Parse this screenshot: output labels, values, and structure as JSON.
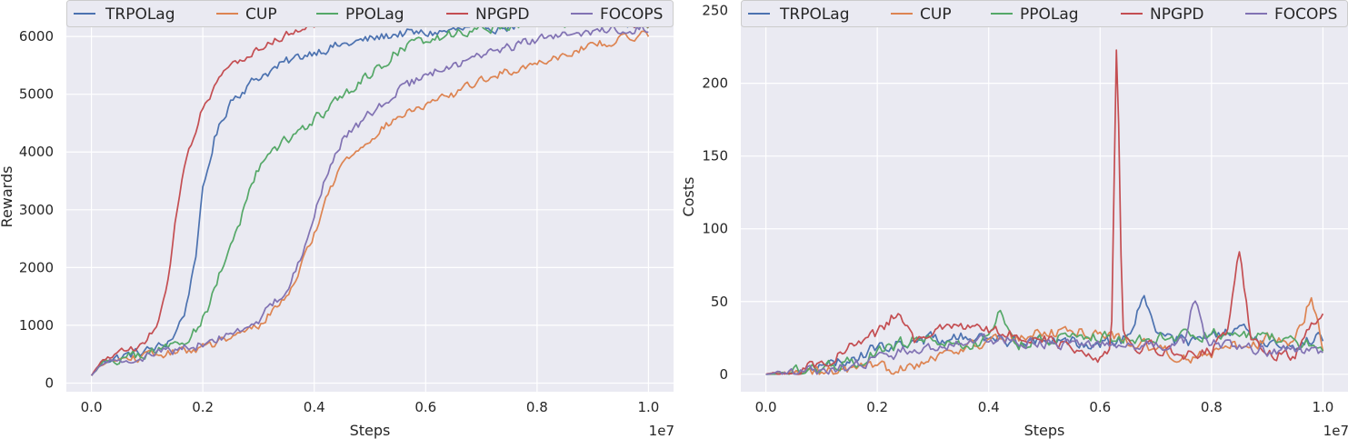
{
  "colors": {
    "TRPOLag": "#4C72B0",
    "CUP": "#DD8452",
    "PPOLag": "#55A868",
    "NPGPD": "#C44E52",
    "FOCOPS": "#8172B3",
    "panel_bg": "#EAEAF2",
    "grid": "#FFFFFF"
  },
  "chart_data": [
    {
      "type": "line",
      "title": "",
      "xlabel": "Steps",
      "ylabel": "Rewards",
      "x_exponent_label": "1e7",
      "xlim": [
        -0.045,
        1.045
      ],
      "ylim": [
        -150,
        6600
      ],
      "x_ticks": [
        0.0,
        0.2,
        0.4,
        0.6,
        0.8,
        1.0
      ],
      "x_tick_labels": [
        "0.0",
        "0.2",
        "0.4",
        "0.6",
        "0.8",
        "1.0"
      ],
      "y_ticks": [
        0,
        1000,
        2000,
        3000,
        4000,
        5000,
        6000
      ],
      "y_tick_labels": [
        "0",
        "1000",
        "2000",
        "3000",
        "4000",
        "5000",
        "6000"
      ],
      "grid": true,
      "legend_position": "top",
      "noise": {
        "TRPOLag": 140,
        "CUP": 120,
        "PPOLag": 150,
        "NPGPD": 110,
        "FOCOPS": 130
      },
      "series": [
        {
          "name": "TRPOLag",
          "x": [
            0,
            0.02,
            0.05,
            0.1,
            0.13,
            0.15,
            0.17,
            0.19,
            0.2,
            0.22,
            0.25,
            0.3,
            0.35,
            0.4,
            0.45,
            0.5,
            0.55,
            0.6,
            0.7,
            0.8,
            0.9,
            1.0
          ],
          "y": [
            130,
            380,
            450,
            560,
            650,
            850,
            1300,
            2400,
            3300,
            4200,
            4900,
            5300,
            5550,
            5750,
            5850,
            5950,
            6050,
            6050,
            6150,
            6200,
            6250,
            6250
          ]
        },
        {
          "name": "CUP",
          "x": [
            0,
            0.02,
            0.05,
            0.1,
            0.15,
            0.2,
            0.25,
            0.3,
            0.35,
            0.38,
            0.4,
            0.42,
            0.45,
            0.5,
            0.55,
            0.6,
            0.65,
            0.7,
            0.8,
            0.9,
            1.0
          ],
          "y": [
            130,
            340,
            400,
            460,
            530,
            620,
            760,
            1000,
            1500,
            2100,
            2600,
            3150,
            3800,
            4250,
            4600,
            4800,
            5000,
            5250,
            5550,
            5850,
            6050
          ]
        },
        {
          "name": "PPOLag",
          "x": [
            0,
            0.02,
            0.05,
            0.1,
            0.15,
            0.18,
            0.2,
            0.22,
            0.25,
            0.27,
            0.3,
            0.35,
            0.4,
            0.45,
            0.5,
            0.55,
            0.6,
            0.7,
            0.8,
            0.9,
            1.0
          ],
          "y": [
            130,
            360,
            420,
            500,
            650,
            850,
            1100,
            1600,
            2400,
            2900,
            3700,
            4200,
            4550,
            4950,
            5350,
            5750,
            5950,
            6150,
            6250,
            6250,
            6250
          ]
        },
        {
          "name": "NPGPD",
          "x": [
            0,
            0.02,
            0.05,
            0.1,
            0.12,
            0.14,
            0.15,
            0.17,
            0.19,
            0.2,
            0.22,
            0.25,
            0.3,
            0.35,
            0.4,
            0.45,
            0.5,
            0.55,
            0.6,
            0.7,
            0.8,
            0.9,
            1.0
          ],
          "y": [
            130,
            400,
            500,
            700,
            1100,
            1900,
            2800,
            3900,
            4500,
            4800,
            5100,
            5500,
            5800,
            6050,
            6200,
            6300,
            6350,
            6350,
            6300,
            6300,
            6250,
            6250,
            6200
          ]
        },
        {
          "name": "FOCOPS",
          "x": [
            0,
            0.02,
            0.05,
            0.1,
            0.15,
            0.2,
            0.25,
            0.3,
            0.35,
            0.38,
            0.4,
            0.42,
            0.45,
            0.5,
            0.55,
            0.6,
            0.65,
            0.7,
            0.8,
            0.9,
            1.0
          ],
          "y": [
            130,
            350,
            410,
            480,
            560,
            680,
            850,
            1100,
            1600,
            2300,
            2900,
            3550,
            4200,
            4650,
            5050,
            5350,
            5500,
            5650,
            5950,
            6100,
            6150
          ]
        }
      ]
    },
    {
      "type": "line",
      "title": "",
      "xlabel": "Steps",
      "ylabel": "Costs",
      "x_exponent_label": "1e7",
      "xlim": [
        -0.045,
        1.045
      ],
      "ylim": [
        -12,
        256
      ],
      "x_ticks": [
        0.0,
        0.2,
        0.4,
        0.6,
        0.8,
        1.0
      ],
      "x_tick_labels": [
        "0.0",
        "0.2",
        "0.4",
        "0.6",
        "0.8",
        "1.0"
      ],
      "y_ticks": [
        0,
        50,
        100,
        150,
        200,
        250
      ],
      "y_tick_labels": [
        "0",
        "50",
        "100",
        "150",
        "200",
        "250"
      ],
      "grid": true,
      "legend_position": "top",
      "noise": {
        "TRPOLag": 7,
        "CUP": 7,
        "PPOLag": 7,
        "NPGPD": 6,
        "FOCOPS": 6
      },
      "series": [
        {
          "name": "TRPOLag",
          "x": [
            0,
            0.05,
            0.1,
            0.15,
            0.2,
            0.25,
            0.3,
            0.35,
            0.4,
            0.5,
            0.6,
            0.65,
            0.68,
            0.7,
            0.75,
            0.8,
            0.85,
            0.9,
            0.95,
            1.0
          ],
          "y": [
            0,
            1,
            4,
            10,
            18,
            22,
            24,
            25,
            24,
            22,
            22,
            25,
            55,
            28,
            22,
            25,
            30,
            22,
            20,
            25
          ]
        },
        {
          "name": "CUP",
          "x": [
            0,
            0.05,
            0.1,
            0.15,
            0.2,
            0.25,
            0.3,
            0.35,
            0.4,
            0.45,
            0.5,
            0.55,
            0.6,
            0.7,
            0.75,
            0.8,
            0.85,
            0.9,
            0.95,
            0.98,
            1.0
          ],
          "y": [
            0,
            0,
            1,
            2,
            3,
            6,
            12,
            18,
            22,
            26,
            28,
            30,
            28,
            18,
            12,
            14,
            20,
            24,
            22,
            55,
            20
          ]
        },
        {
          "name": "PPOLag",
          "x": [
            0,
            0.05,
            0.1,
            0.15,
            0.2,
            0.25,
            0.3,
            0.35,
            0.4,
            0.42,
            0.45,
            0.5,
            0.6,
            0.7,
            0.8,
            0.9,
            1.0
          ],
          "y": [
            0,
            1,
            3,
            8,
            15,
            22,
            24,
            20,
            22,
            45,
            20,
            24,
            26,
            24,
            28,
            26,
            18
          ]
        },
        {
          "name": "NPGPD",
          "x": [
            0,
            0.05,
            0.1,
            0.15,
            0.2,
            0.24,
            0.27,
            0.3,
            0.35,
            0.4,
            0.45,
            0.5,
            0.55,
            0.6,
            0.62,
            0.63,
            0.64,
            0.66,
            0.7,
            0.75,
            0.8,
            0.83,
            0.85,
            0.87,
            0.9,
            0.95,
            0.98,
            1.0
          ],
          "y": [
            0,
            2,
            8,
            18,
            28,
            45,
            22,
            30,
            32,
            30,
            28,
            25,
            18,
            12,
            20,
            240,
            30,
            20,
            18,
            14,
            16,
            30,
            85,
            25,
            15,
            12,
            35,
            45
          ]
        },
        {
          "name": "FOCOPS",
          "x": [
            0,
            0.05,
            0.1,
            0.15,
            0.2,
            0.25,
            0.3,
            0.35,
            0.4,
            0.5,
            0.6,
            0.7,
            0.75,
            0.77,
            0.79,
            0.85,
            0.9,
            0.95,
            1.0
          ],
          "y": [
            0,
            1,
            2,
            5,
            10,
            16,
            20,
            22,
            24,
            22,
            20,
            20,
            22,
            55,
            22,
            18,
            16,
            18,
            16
          ]
        }
      ]
    }
  ]
}
